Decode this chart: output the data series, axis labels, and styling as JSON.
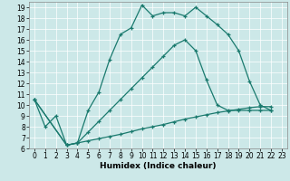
{
  "xlabel": "Humidex (Indice chaleur)",
  "xlim": [
    -0.5,
    23.5
  ],
  "ylim": [
    6,
    19.5
  ],
  "xticks": [
    0,
    1,
    2,
    3,
    4,
    5,
    6,
    7,
    8,
    9,
    10,
    11,
    12,
    13,
    14,
    15,
    16,
    17,
    18,
    19,
    20,
    21,
    22,
    23
  ],
  "yticks": [
    6,
    7,
    8,
    9,
    10,
    11,
    12,
    13,
    14,
    15,
    16,
    17,
    18,
    19
  ],
  "bg_color": "#cce8e8",
  "line_color": "#1a7a6e",
  "line1_x": [
    0,
    1,
    2,
    3,
    4,
    5,
    6,
    7,
    8,
    9,
    10,
    11,
    12,
    13,
    14,
    15,
    16,
    17,
    18,
    19,
    20,
    21,
    22
  ],
  "line1_y": [
    10.5,
    8.0,
    9.0,
    6.3,
    6.5,
    9.5,
    11.2,
    14.2,
    16.5,
    17.1,
    19.2,
    18.2,
    18.5,
    18.5,
    18.2,
    19.0,
    18.2,
    17.4,
    16.5,
    15.0,
    12.2,
    10.0,
    9.5
  ],
  "line2_x": [
    0,
    3,
    4,
    5,
    6,
    7,
    8,
    9,
    10,
    11,
    12,
    13,
    14,
    15,
    16,
    17,
    18,
    19,
    20,
    21,
    22
  ],
  "line2_y": [
    10.5,
    6.3,
    6.5,
    6.7,
    6.9,
    7.1,
    7.3,
    7.55,
    7.8,
    8.0,
    8.2,
    8.45,
    8.7,
    8.9,
    9.1,
    9.3,
    9.45,
    9.6,
    9.75,
    9.85,
    9.85
  ],
  "line3_x": [
    0,
    3,
    4,
    5,
    6,
    7,
    8,
    9,
    10,
    11,
    12,
    13,
    14,
    15,
    16,
    17,
    18,
    19,
    20,
    21,
    22
  ],
  "line3_y": [
    10.5,
    6.3,
    6.5,
    7.5,
    8.5,
    9.5,
    10.5,
    11.5,
    12.5,
    13.5,
    14.5,
    15.5,
    16.0,
    15.0,
    12.3,
    10.0,
    9.5,
    9.5,
    9.5,
    9.5,
    9.5
  ],
  "tick_fontsize": 5.5,
  "xlabel_fontsize": 6.5,
  "grid_color": "#ffffff",
  "spine_color": "#888888"
}
